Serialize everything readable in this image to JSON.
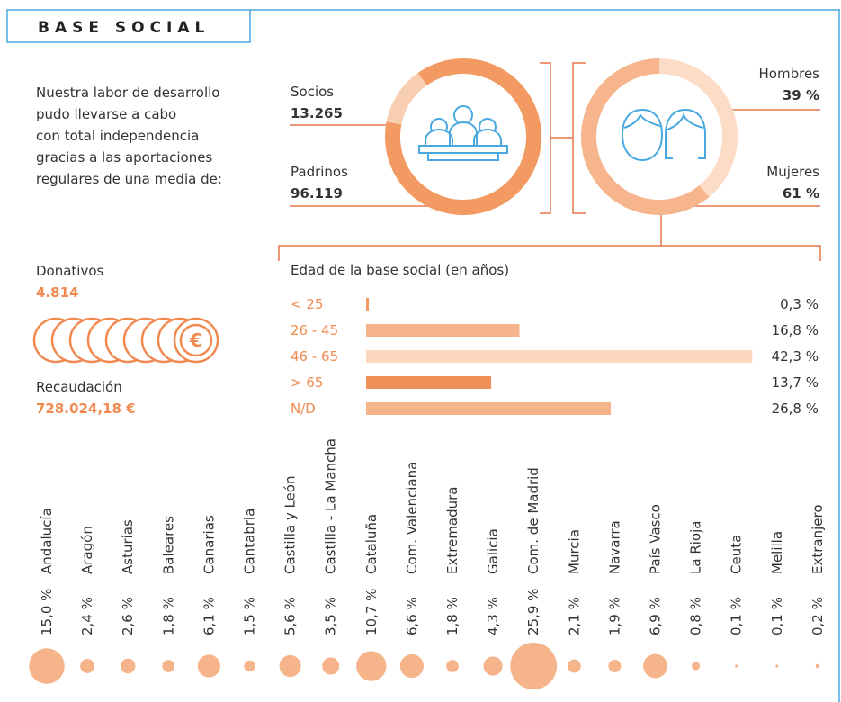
{
  "title": "BASE SOCIAL",
  "intro": [
    "Nuestra labor de desarrollo",
    "pudo llevarse a cabo",
    "con total independencia",
    "gracias a las aportaciones",
    "regulares de una media de:"
  ],
  "donativos": {
    "label": "Donativos",
    "value": "4.814"
  },
  "recaudacion": {
    "label": "Recaudación",
    "value": "728.024,18 €"
  },
  "chart_data": [
    {
      "type": "donut",
      "categories": [
        "Socios",
        "Padrinos"
      ],
      "values": [
        13265,
        96119
      ],
      "value_labels": [
        "13.265",
        "96.119"
      ],
      "colors": [
        "#f8ceb0",
        "#f29a62"
      ]
    },
    {
      "type": "donut",
      "categories": [
        "Hombres",
        "Mujeres"
      ],
      "values": [
        39,
        61
      ],
      "value_labels": [
        "39 %",
        "61 %"
      ],
      "colors": [
        "#fcdcc6",
        "#f6b58c"
      ]
    },
    {
      "type": "bar",
      "title": "Edad de la base social (en años)",
      "categories": [
        "< 25",
        "26 - 45",
        "46 - 65",
        "> 65",
        "N/D"
      ],
      "values": [
        0.3,
        16.8,
        42.3,
        13.7,
        26.8
      ],
      "value_labels": [
        "0,3 %",
        "16,8 %",
        "42,3 %",
        "13,7 %",
        "26,8 %"
      ],
      "colors": [
        "#f29a62",
        "#f6b48a",
        "#fcd6bd",
        "#f0915a",
        "#f6b48a"
      ]
    },
    {
      "type": "bubble",
      "color": "#f6b48a",
      "categories": [
        "Andalucía",
        "Aragón",
        "Asturias",
        "Baleares",
        "Canarias",
        "Cantabria",
        "Castilla y León",
        "Castilla - La Mancha",
        "Cataluña",
        "Com. Valenciana",
        "Extremadura",
        "Galicia",
        "Com. de Madrid",
        "Murcia",
        "Navarra",
        "País Vasco",
        "La Rioja",
        "Ceuta",
        "Melilla",
        "Extranjero"
      ],
      "values": [
        15.0,
        2.4,
        2.6,
        1.8,
        6.1,
        1.5,
        5.6,
        3.5,
        10.7,
        6.6,
        1.8,
        4.3,
        25.9,
        2.1,
        1.9,
        6.9,
        0.8,
        0.1,
        0.1,
        0.2
      ],
      "value_labels": [
        "15,0 %",
        "2,4 %",
        "2,6 %",
        "1,8 %",
        "6,1 %",
        "1,5 %",
        "5,6 %",
        "3,5 %",
        "10,7 %",
        "6,6 %",
        "1,8 %",
        "4,3 %",
        "25,9 %",
        "2,1 %",
        "1,9 %",
        "6,9 %",
        "0,8 %",
        "0,1 %",
        "0,1 %",
        "0,2 %"
      ]
    }
  ]
}
